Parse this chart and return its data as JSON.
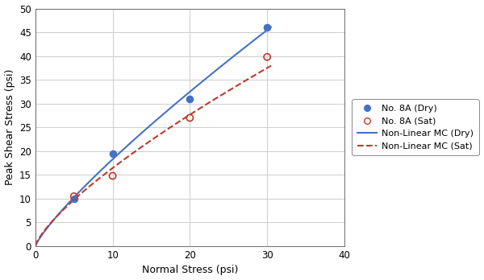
{
  "dry_points_x": [
    5,
    10,
    20,
    30
  ],
  "dry_points_y": [
    10,
    19.5,
    31,
    46
  ],
  "sat_points_x": [
    5,
    10,
    20,
    30
  ],
  "sat_points_y": [
    10.5,
    14.8,
    27,
    39.8
  ],
  "dry_color": "#4472C4",
  "sat_color": "#C0392B",
  "xlim": [
    0,
    40
  ],
  "ylim": [
    0,
    50
  ],
  "xticks": [
    0,
    10,
    20,
    30,
    40
  ],
  "yticks": [
    0,
    5,
    10,
    15,
    20,
    25,
    30,
    35,
    40,
    45,
    50
  ],
  "xlabel": "Normal Stress (psi)",
  "ylabel": "Peak Shear Stress (psi)",
  "legend_dry_label": "No. 8A (Dry)",
  "legend_sat_label": "No. 8A (Sat)",
  "legend_dry_line_label": "Non-Linear MC (Dry)",
  "legend_sat_line_label": "Non-Linear MC (Sat)",
  "curve_start_x": 0.01,
  "curve_end_x": 30.5,
  "figsize": [
    6.0,
    3.48
  ],
  "dpi": 100
}
